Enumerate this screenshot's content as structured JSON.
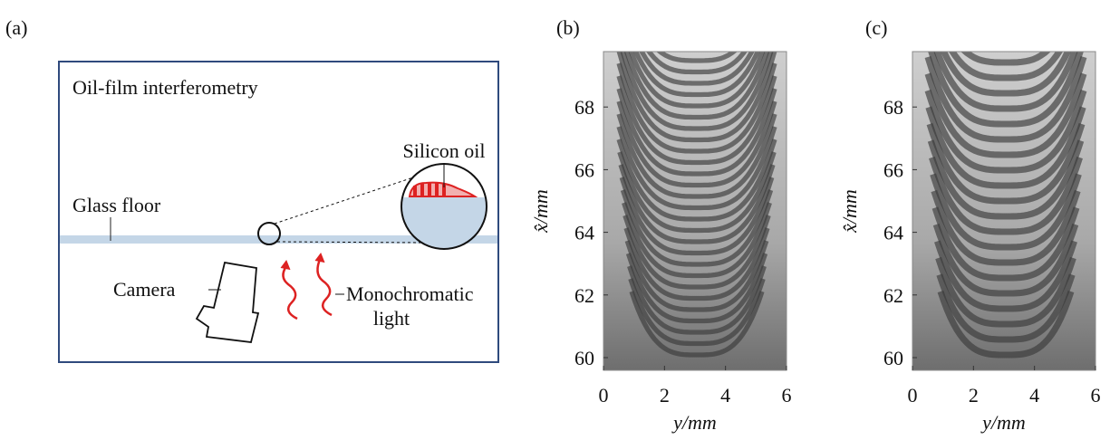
{
  "panels": [
    {
      "label": "(a)",
      "title": "Oil-film interferometry",
      "labels": [
        "Glass floor",
        "Silicon oil",
        "Camera",
        "Monochromatic",
        "light"
      ]
    },
    {
      "label": "(b)",
      "y_label": "x̂/mm",
      "x_label": "y/mm",
      "yticks": [
        60,
        62,
        64,
        66,
        68
      ],
      "xticks": [
        0,
        2,
        4,
        6
      ]
    },
    {
      "label": "(c)",
      "y_label": "x̂/mm",
      "x_label": "y/mm",
      "yticks": [
        60,
        62,
        64,
        66,
        68
      ],
      "xticks": [
        0,
        2,
        4,
        6
      ]
    }
  ]
}
